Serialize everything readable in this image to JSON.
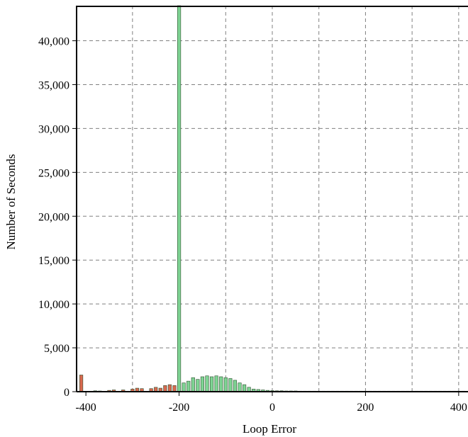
{
  "chart_data": {
    "type": "bar",
    "xlabel": "Loop Error",
    "ylabel": "Number of Seconds",
    "xlim": [
      -420,
      420
    ],
    "ylim": [
      0,
      44000
    ],
    "x_ticks": [
      -400,
      -200,
      0,
      200,
      400
    ],
    "x_tick_labels": [
      "-400",
      "-200",
      "0",
      "200",
      "400"
    ],
    "y_ticks": [
      0,
      5000,
      10000,
      15000,
      20000,
      25000,
      30000,
      35000,
      40000
    ],
    "y_tick_labels": [
      "0",
      "5,000",
      "10,000",
      "15,000",
      "20,000",
      "25,000",
      "30,000",
      "35,000",
      "40,000"
    ],
    "grid": true,
    "bar_width": 10,
    "colors": {
      "negative_bar": "#d9694f",
      "positive_bar": "#7fd494",
      "bar_outline": "#2f4f2f",
      "grid": "#808080"
    },
    "series": [
      {
        "color": "#d9694f",
        "x": [
          -410,
          -380,
          -370,
          -350,
          -340,
          -320,
          -300,
          -290,
          -280,
          -260,
          -250,
          -240,
          -230,
          -220,
          -210
        ],
        "values": [
          1900,
          100,
          80,
          150,
          200,
          200,
          300,
          400,
          350,
          350,
          500,
          400,
          700,
          800,
          700
        ]
      },
      {
        "color": "#7fd494",
        "x": [
          -200,
          -190,
          -180,
          -170,
          -160,
          -150,
          -140,
          -130,
          -120,
          -110,
          -100,
          -90,
          -80,
          -70,
          -60,
          -50,
          -40,
          -30,
          -20,
          -10,
          0,
          10,
          20,
          30,
          40,
          50,
          60,
          70,
          80,
          90,
          100,
          110,
          120,
          130,
          140,
          150,
          160,
          170,
          180,
          190,
          200,
          210,
          220,
          230,
          240,
          250,
          260,
          270,
          280,
          290,
          300,
          310,
          320,
          330,
          340,
          350,
          360,
          370,
          380,
          390,
          400,
          410
        ],
        "values": [
          44000,
          1000,
          1200,
          1600,
          1400,
          1700,
          1800,
          1700,
          1800,
          1700,
          1600,
          1500,
          1300,
          1000,
          800,
          500,
          300,
          250,
          200,
          150,
          120,
          100,
          100,
          80,
          80,
          80,
          60,
          60,
          60,
          60,
          60,
          60,
          60,
          60,
          60,
          60,
          60,
          60,
          60,
          60,
          60,
          60,
          60,
          60,
          60,
          60,
          60,
          60,
          60,
          60,
          60,
          60,
          60,
          60,
          60,
          60,
          60,
          60,
          60,
          60,
          60,
          60
        ]
      }
    ]
  }
}
